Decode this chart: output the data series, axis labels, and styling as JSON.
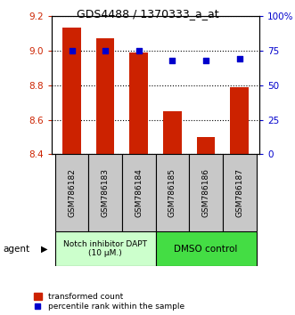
{
  "title": "GDS4488 / 1370333_a_at",
  "categories": [
    "GSM786182",
    "GSM786183",
    "GSM786184",
    "GSM786185",
    "GSM786186",
    "GSM786187"
  ],
  "bar_values": [
    9.13,
    9.07,
    8.99,
    8.65,
    8.5,
    8.79
  ],
  "bar_bottom": 8.4,
  "percentile_values": [
    75,
    75,
    75,
    68,
    68,
    69
  ],
  "ylim_left": [
    8.4,
    9.2
  ],
  "ylim_right": [
    0,
    100
  ],
  "yticks_left": [
    8.4,
    8.6,
    8.8,
    9.0,
    9.2
  ],
  "yticks_right": [
    0,
    25,
    50,
    75,
    100
  ],
  "ytick_labels_right": [
    "0",
    "25",
    "50",
    "75",
    "100%"
  ],
  "bar_color": "#cc2200",
  "dot_color": "#0000cc",
  "group1_label": "Notch inhibitor DAPT\n(10 μM.)",
  "group2_label": "DMSO control",
  "group1_color": "#ccffcc",
  "group2_color": "#44dd44",
  "group1_indices": [
    0,
    1,
    2
  ],
  "group2_indices": [
    3,
    4,
    5
  ],
  "agent_label": "agent",
  "legend_bar_label": "transformed count",
  "legend_dot_label": "percentile rank within the sample",
  "bar_width": 0.55,
  "background_color": "#ffffff",
  "tick_label_color_left": "#cc2200",
  "tick_label_color_right": "#0000cc",
  "label_box_color": "#c8c8c8",
  "fig_width": 3.31,
  "fig_height": 3.54,
  "dpi": 100
}
